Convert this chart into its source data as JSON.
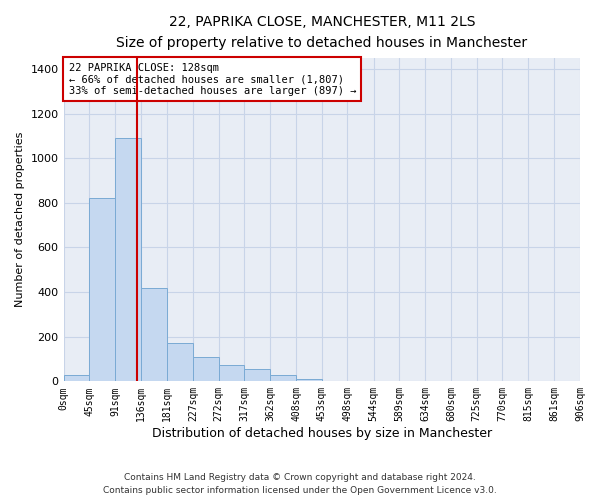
{
  "title_line1": "22, PAPRIKA CLOSE, MANCHESTER, M11 2LS",
  "title_line2": "Size of property relative to detached houses in Manchester",
  "xlabel": "Distribution of detached houses by size in Manchester",
  "ylabel": "Number of detached properties",
  "bar_edges": [
    0,
    45,
    91,
    136,
    181,
    227,
    272,
    317,
    362,
    408,
    453,
    498,
    544,
    589,
    634,
    680,
    725,
    770,
    815,
    861,
    906
  ],
  "bar_heights": [
    30,
    820,
    1090,
    420,
    170,
    110,
    75,
    55,
    30,
    10,
    0,
    0,
    0,
    0,
    0,
    0,
    0,
    0,
    0,
    0
  ],
  "bar_color": "#c5d8f0",
  "bar_edgecolor": "#7aaad4",
  "grid_color": "#c8d4e8",
  "bg_color": "#e8edf5",
  "vline_x": 128,
  "vline_color": "#cc0000",
  "annotation_text": "22 PAPRIKA CLOSE: 128sqm\n← 66% of detached houses are smaller (1,807)\n33% of semi-detached houses are larger (897) →",
  "annotation_box_color": "white",
  "annotation_box_edgecolor": "#cc0000",
  "ylim": [
    0,
    1450
  ],
  "yticks": [
    0,
    200,
    400,
    600,
    800,
    1000,
    1200,
    1400
  ],
  "tick_labels": [
    "0sqm",
    "45sqm",
    "91sqm",
    "136sqm",
    "181sqm",
    "227sqm",
    "272sqm",
    "317sqm",
    "362sqm",
    "408sqm",
    "453sqm",
    "498sqm",
    "544sqm",
    "589sqm",
    "634sqm",
    "680sqm",
    "725sqm",
    "770sqm",
    "815sqm",
    "861sqm",
    "906sqm"
  ],
  "footer_line1": "Contains HM Land Registry data © Crown copyright and database right 2024.",
  "footer_line2": "Contains public sector information licensed under the Open Government Licence v3.0."
}
